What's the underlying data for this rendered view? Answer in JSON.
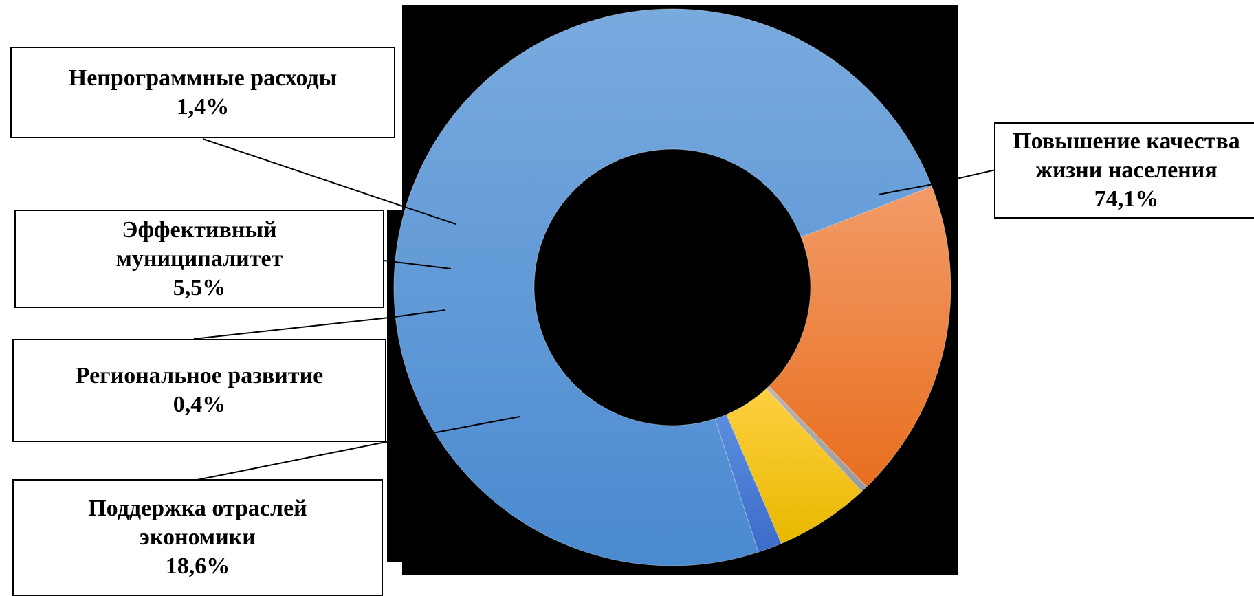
{
  "chart_data": {
    "type": "pie",
    "variant": "donut",
    "title": "",
    "slices": [
      {
        "lines": [
          "Повышение качества",
          "жизни населения"
        ],
        "value_label": "74,1%",
        "value": 74.1,
        "color_top": "#79aade",
        "color_bottom": "#4a8ad0"
      },
      {
        "lines": [
          "Поддержка отраслей",
          "экономики"
        ],
        "value_label": "18,6%",
        "value": 18.6,
        "color_top": "#f29b68",
        "color_bottom": "#e86e1e"
      },
      {
        "lines": [
          "Региональное развитие"
        ],
        "value_label": "0,4%",
        "value": 0.4,
        "color_top": "#b7b7b7",
        "color_bottom": "#9a9a9a"
      },
      {
        "lines": [
          "Эффективный",
          "муниципалитет"
        ],
        "value_label": "5,5%",
        "value": 5.5,
        "color_top": "#ffd040",
        "color_bottom": "#e8b800"
      },
      {
        "lines": [
          "Непрограммные расходы"
        ],
        "value_label": "1,4%",
        "value": 1.4,
        "color_top": "#5b8ee0",
        "color_bottom": "#3b6cc8"
      }
    ],
    "background": "#000000",
    "legend": "none"
  }
}
